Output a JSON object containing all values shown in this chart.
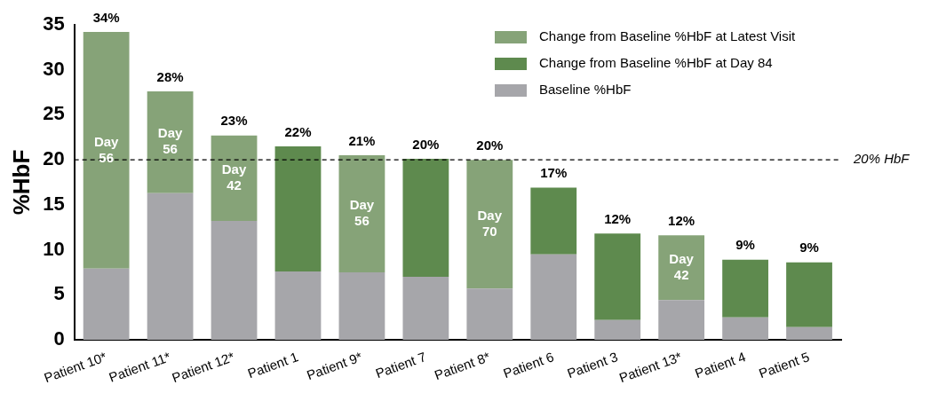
{
  "chart_data": {
    "type": "bar",
    "stacked": true,
    "ylabel": "%HbF",
    "categories": [
      "Patient 10*",
      "Patient 11*",
      "Patient 12*",
      "Patient 1",
      "Patient 9*",
      "Patient 7",
      "Patient 8*",
      "Patient 6",
      "Patient 3",
      "Patient 13*",
      "Patient 4",
      "Patient 5"
    ],
    "series": [
      {
        "name": "Baseline %HbF",
        "color": "#a6a6aa",
        "values": [
          7.9,
          16.3,
          13.2,
          7.6,
          7.5,
          7.0,
          5.7,
          9.5,
          2.2,
          4.4,
          2.5,
          1.4
        ]
      },
      {
        "name": "Change from Baseline %HbF at Day 84",
        "color": "#5e8a4e",
        "values": [
          null,
          null,
          null,
          13.9,
          null,
          13.1,
          null,
          7.4,
          9.6,
          null,
          6.4,
          7.2
        ]
      },
      {
        "name": "Change from Baseline %HbF at Latest Visit",
        "color": "#86a378",
        "values": [
          26.3,
          11.3,
          9.5,
          null,
          13.0,
          null,
          14.3,
          null,
          null,
          7.2,
          null,
          null
        ]
      }
    ],
    "totals": [
      "34%",
      "28%",
      "23%",
      "22%",
      "21%",
      "20%",
      "20%",
      "17%",
      "12%",
      "12%",
      "9%",
      "9%"
    ],
    "ylim": [
      0,
      35
    ],
    "yticks": [
      0,
      5,
      10,
      15,
      20,
      25,
      30,
      35
    ],
    "grid": false,
    "legend": "top right",
    "ref_lines": [
      {
        "axis": "y",
        "value": 20,
        "label": "20% HbF",
        "color": "#000000",
        "line_style": "dashed"
      }
    ],
    "annotations": [
      "Day 56",
      "Day 56",
      "Day 42",
      "Day 56",
      "Day 70",
      "Day 42"
    ]
  }
}
